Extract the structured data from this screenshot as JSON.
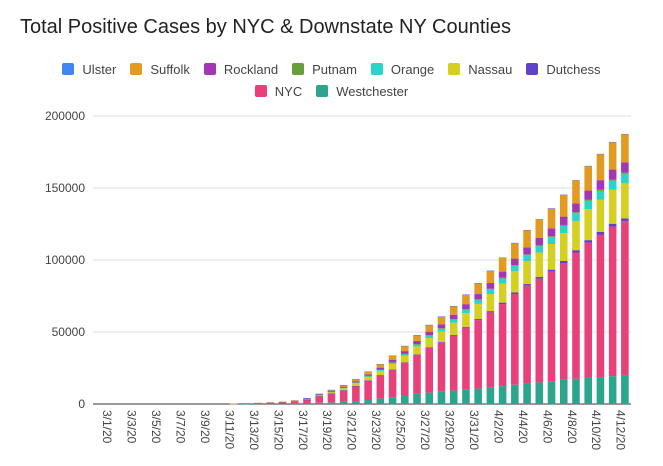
{
  "chart_data": {
    "type": "bar",
    "stacked": true,
    "title": "Total Positive Cases by NYC & Downstate NY Counties",
    "xlabel": "",
    "ylabel": "",
    "ylim": [
      0,
      200000
    ],
    "yticks": [
      "0",
      "50000",
      "100000",
      "150000",
      "200000"
    ],
    "grid": true,
    "legend_position": "top",
    "x": [
      "3/1/20",
      "3/2/20",
      "3/3/20",
      "3/4/20",
      "3/5/20",
      "3/6/20",
      "3/7/20",
      "3/8/20",
      "3/9/20",
      "3/10/20",
      "3/11/20",
      "3/12/20",
      "3/13/20",
      "3/14/20",
      "3/15/20",
      "3/16/20",
      "3/17/20",
      "3/18/20",
      "3/19/20",
      "3/20/20",
      "3/21/20",
      "3/22/20",
      "3/23/20",
      "3/24/20",
      "3/25/20",
      "3/26/20",
      "3/27/20",
      "3/28/20",
      "3/29/20",
      "3/30/20",
      "3/31/20",
      "4/1/20",
      "4/2/20",
      "4/3/20",
      "4/4/20",
      "4/5/20",
      "4/6/20",
      "4/7/20",
      "4/8/20",
      "4/9/20",
      "4/10/20",
      "4/11/20",
      "4/12/20",
      "4/13/20"
    ],
    "x_tick_labels": [
      "3/1/20",
      "3/3/20",
      "3/5/20",
      "3/7/20",
      "3/9/20",
      "3/11/20",
      "3/13/20",
      "3/15/20",
      "3/17/20",
      "3/19/20",
      "3/21/20",
      "3/23/20",
      "3/25/20",
      "3/27/20",
      "3/29/20",
      "3/31/20",
      "4/2/20",
      "4/4/20",
      "4/6/20",
      "4/8/20",
      "4/10/20",
      "4/12/20"
    ],
    "legend_rows": [
      [
        "Ulster",
        "Suffolk",
        "Rockland",
        "Putnam",
        "Orange",
        "Nassau",
        "Dutchess"
      ],
      [
        "NYC",
        "Westchester"
      ]
    ],
    "series": [
      {
        "name": "Westchester",
        "color": "#2ca58d",
        "values": [
          0,
          0,
          0,
          0,
          0,
          0,
          0,
          0,
          0,
          0,
          0,
          150,
          200,
          230,
          260,
          280,
          400,
          700,
          900,
          1200,
          1500,
          2000,
          2800,
          3900,
          4700,
          5900,
          7200,
          7900,
          8500,
          9300,
          9900,
          10700,
          11600,
          12400,
          13400,
          14300,
          15000,
          15900,
          16900,
          17600,
          18100,
          18700,
          19300,
          20200
        ]
      },
      {
        "name": "NYC",
        "color": "#e8407a",
        "values": [
          0,
          0,
          0,
          0,
          0,
          0,
          0,
          0,
          0,
          0,
          0,
          100,
          300,
          400,
          650,
          900,
          1500,
          2300,
          4500,
          6000,
          8000,
          10500,
          13500,
          16000,
          19000,
          22700,
          27000,
          31000,
          34000,
          38000,
          43000,
          47500,
          52000,
          57000,
          63000,
          67800,
          72000,
          76000,
          81000,
          87600,
          94000,
          99000,
          104000,
          106700
        ]
      },
      {
        "name": "Dutchess",
        "color": "#5f42c9",
        "values": [
          0,
          0,
          0,
          0,
          0,
          0,
          0,
          0,
          0,
          0,
          0,
          0,
          0,
          0,
          0,
          0,
          0,
          20,
          40,
          60,
          80,
          100,
          120,
          150,
          200,
          250,
          300,
          400,
          500,
          600,
          700,
          800,
          900,
          1000,
          1100,
          1200,
          1300,
          1400,
          1500,
          1600,
          1700,
          1800,
          1900,
          2000
        ]
      },
      {
        "name": "Nassau",
        "color": "#d4cf21",
        "values": [
          0,
          0,
          0,
          0,
          0,
          0,
          0,
          0,
          0,
          0,
          0,
          20,
          50,
          80,
          120,
          180,
          300,
          500,
          700,
          1000,
          1400,
          1900,
          2400,
          3000,
          3900,
          4600,
          5500,
          6500,
          7400,
          8500,
          9500,
          10500,
          11900,
          13300,
          14600,
          16000,
          16900,
          17800,
          19200,
          20300,
          21600,
          22500,
          23500,
          24300
        ]
      },
      {
        "name": "Orange",
        "color": "#2bd4c8",
        "values": [
          0,
          0,
          0,
          0,
          0,
          0,
          0,
          0,
          0,
          0,
          0,
          0,
          0,
          10,
          20,
          40,
          80,
          120,
          200,
          300,
          400,
          500,
          650,
          800,
          1000,
          1200,
          1400,
          1700,
          1900,
          2200,
          2500,
          2800,
          3200,
          3500,
          3800,
          4100,
          4500,
          4800,
          5100,
          5400,
          5700,
          6000,
          6300,
          6600
        ]
      },
      {
        "name": "Putnam",
        "color": "#6a9e3c",
        "values": [
          0,
          0,
          0,
          0,
          0,
          0,
          0,
          0,
          0,
          0,
          0,
          0,
          0,
          0,
          0,
          0,
          5,
          10,
          20,
          40,
          60,
          80,
          100,
          120,
          150,
          180,
          210,
          240,
          270,
          300,
          330,
          360,
          400,
          440,
          480,
          520,
          560,
          600,
          640,
          680,
          720,
          760,
          800,
          840
        ]
      },
      {
        "name": "Rockland",
        "color": "#a336b2",
        "values": [
          0,
          0,
          0,
          0,
          0,
          0,
          0,
          0,
          0,
          0,
          0,
          5,
          10,
          20,
          40,
          60,
          100,
          150,
          250,
          400,
          600,
          800,
          1000,
          1300,
          1600,
          1900,
          2200,
          2500,
          2800,
          3100,
          3400,
          3700,
          4000,
          4300,
          4600,
          4900,
          5200,
          5500,
          5800,
          6100,
          6400,
          6700,
          7000,
          7200
        ]
      },
      {
        "name": "Suffolk",
        "color": "#e29a21",
        "values": [
          0,
          0,
          0,
          0,
          0,
          0,
          0,
          0,
          0,
          0,
          0,
          20,
          40,
          60,
          100,
          150,
          200,
          300,
          500,
          800,
          1100,
          1500,
          2000,
          2500,
          3100,
          3600,
          4100,
          4700,
          5400,
          6000,
          6700,
          7600,
          8600,
          9700,
          10800,
          11900,
          12800,
          13800,
          15100,
          16000,
          17000,
          18100,
          19000,
          19500
        ]
      },
      {
        "name": "Ulster",
        "color": "#4285f4",
        "values": [
          0,
          0,
          0,
          0,
          0,
          0,
          0,
          0,
          0,
          0,
          0,
          0,
          0,
          0,
          0,
          0,
          0,
          5,
          8,
          12,
          16,
          20,
          25,
          30,
          35,
          40,
          45,
          50,
          55,
          60,
          70,
          80,
          90,
          100,
          110,
          120,
          130,
          140,
          150,
          160,
          170,
          180,
          190,
          200
        ]
      }
    ]
  }
}
